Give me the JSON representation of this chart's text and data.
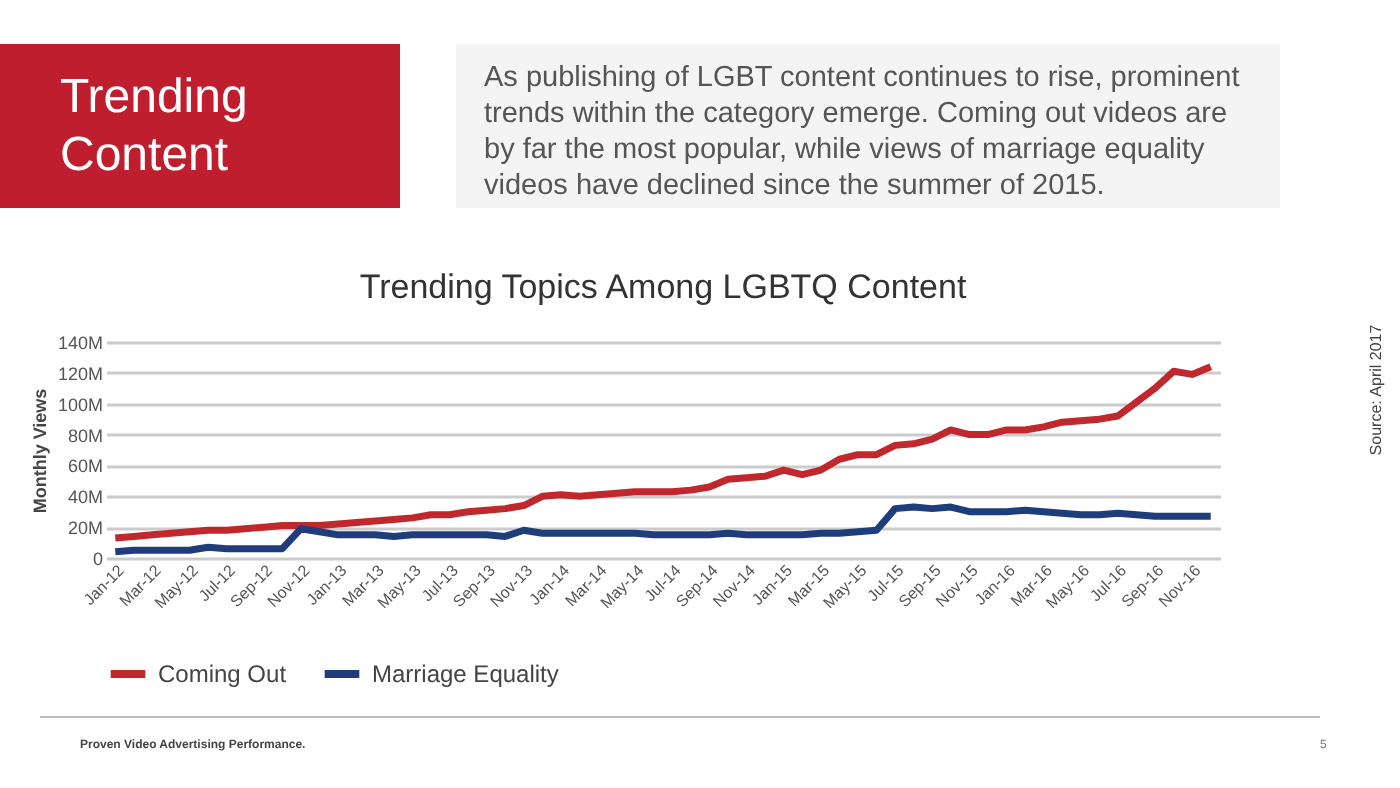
{
  "chart_data": {
    "type": "line",
    "title": "Trending Topics Among LGBTQ Content",
    "ylabel": "Monthly Views",
    "annotations": [
      "Trending Content",
      "As publishing of LGBT content continues to rise, prominent trends within the category emerge. Coming out videos are by far the most popular, while views of marriage equality videos have declined since the summer of 2015.",
      "Source: April 2017",
      "Proven Video Advertising Performance.",
      "5"
    ],
    "categories": [
      "Jan-12",
      null,
      "Mar-12",
      null,
      "May-12",
      null,
      "Jul-12",
      null,
      "Sep-12",
      null,
      "Nov-12",
      null,
      "Jan-13",
      null,
      "Mar-13",
      null,
      "May-13",
      null,
      "Jul-13",
      null,
      "Sep-13",
      null,
      "Nov-13",
      null,
      "Jan-14",
      null,
      "Mar-14",
      null,
      "May-14",
      null,
      "Jul-14",
      null,
      "Sep-14",
      null,
      "Nov-14",
      null,
      "Jan-15",
      null,
      "Mar-15",
      null,
      "May-15",
      null,
      "Jul-15",
      null,
      "Sep-15",
      null,
      "Nov-15",
      null,
      "Jan-16",
      null,
      "Mar-16",
      null,
      "May-16",
      null,
      "Jul-16",
      null,
      "Sep-16",
      null,
      "Nov-16",
      null
    ],
    "series": [
      {
        "name": "Coming Out",
        "color": "#c0282d",
        "values": [
          13,
          14,
          15,
          16,
          17,
          18,
          18,
          19,
          20,
          21,
          21,
          21,
          22,
          23,
          24,
          25,
          26,
          28,
          28,
          30,
          31,
          32,
          34,
          40,
          41,
          40,
          41,
          42,
          43,
          43,
          43,
          44,
          46,
          51,
          52,
          53,
          57,
          54,
          57,
          64,
          67,
          67,
          73,
          74,
          77,
          83,
          80,
          80,
          83,
          83,
          85,
          88,
          89,
          90,
          92,
          101,
          110,
          121,
          119,
          124
        ]
      },
      {
        "name": "Marriage Equality",
        "color": "#1f3d7a",
        "values": [
          4,
          5,
          5,
          5,
          5,
          7,
          6,
          6,
          6,
          6,
          19,
          17,
          15,
          15,
          15,
          14,
          15,
          15,
          15,
          15,
          15,
          14,
          18,
          16,
          16,
          16,
          16,
          16,
          16,
          15,
          15,
          15,
          15,
          16,
          15,
          15,
          15,
          15,
          16,
          16,
          17,
          18,
          32,
          33,
          32,
          33,
          30,
          30,
          30,
          31,
          30,
          29,
          28,
          28,
          29,
          28,
          27,
          27,
          27,
          27
        ]
      }
    ],
    "ylim": [
      0,
      140
    ],
    "yticks": [
      0,
      {
        "value": 20,
        "label": "20M"
      },
      {
        "value": 40,
        "label": "40M"
      },
      {
        "value": 60,
        "label": "60M"
      },
      {
        "value": 80,
        "label": "80M"
      },
      {
        "value": 100,
        "label": "100M"
      },
      {
        "value": 120,
        "label": "120M"
      },
      {
        "value": 140,
        "label": "140M"
      }
    ],
    "grid": "y",
    "legend": "bottom",
    "marker": "none",
    "line_style": "solid"
  }
}
